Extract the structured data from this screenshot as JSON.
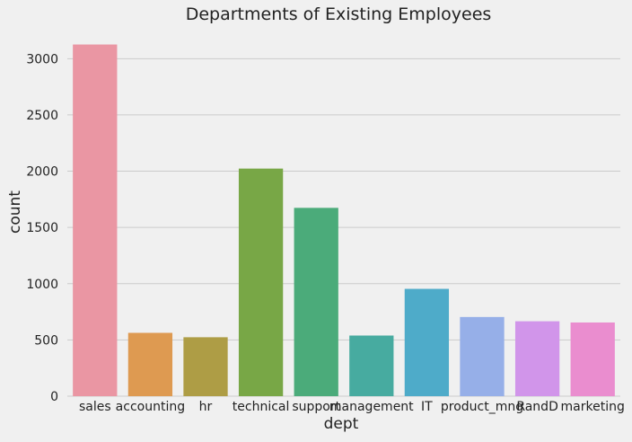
{
  "chart_data": {
    "type": "bar",
    "title": "Departments of Existing Employees",
    "xlabel": "dept",
    "ylabel": "count",
    "categories": [
      "sales",
      "accounting",
      "hr",
      "technical",
      "support",
      "management",
      "IT",
      "product_mng",
      "RandD",
      "marketing"
    ],
    "values": [
      3126,
      563,
      524,
      2023,
      1674,
      539,
      954,
      704,
      666,
      655
    ],
    "colors": [
      "#ea96a3",
      "#de9a51",
      "#ae9d45",
      "#78a746",
      "#4bab7a",
      "#47aba0",
      "#4eabc9",
      "#96afe8",
      "#d195ea",
      "#ea8dcf"
    ],
    "yticks": [
      0,
      500,
      1000,
      1500,
      2000,
      2500,
      3000
    ],
    "ylim": [
      0,
      3282
    ],
    "grid": "horizontal",
    "background": "#f0f0f0",
    "grid_color": "#cbcbcb"
  }
}
